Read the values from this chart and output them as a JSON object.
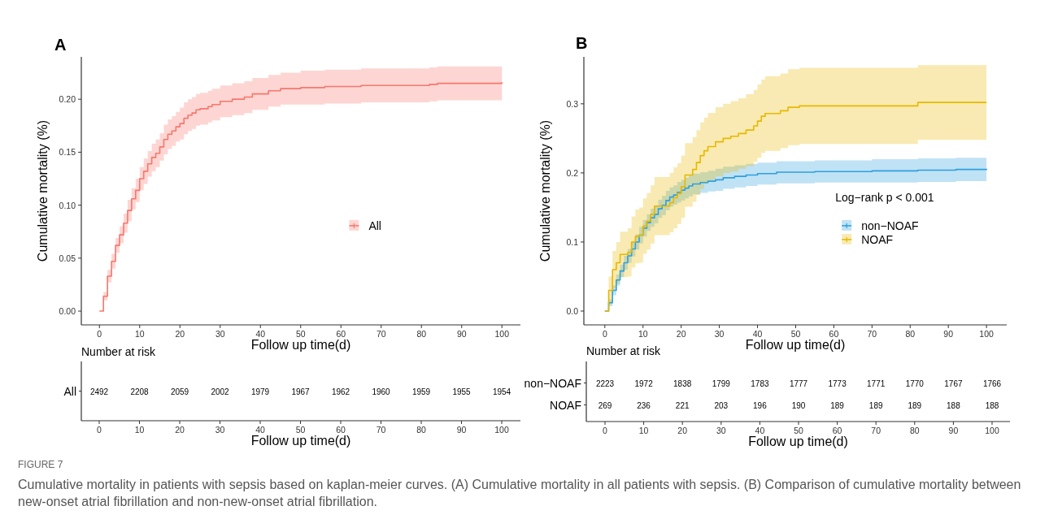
{
  "chart_data": [
    {
      "type": "step",
      "title": "A",
      "xlabel": "Follow up time(d)",
      "ylabel": "Cumulative mortality (%)",
      "xlim": [
        -4.5,
        104.6
      ],
      "xticks": [
        0,
        10,
        20,
        30,
        40,
        50,
        60,
        70,
        80,
        90,
        100
      ],
      "ylim": [
        -0.013,
        0.24
      ],
      "yticks": [
        {
          "value": 0,
          "label": "0.00"
        },
        {
          "value": 0.05,
          "label": "0.05"
        },
        {
          "value": 0.1,
          "label": "0.10"
        },
        {
          "value": 0.15,
          "label": "0.15"
        },
        {
          "value": 0.2,
          "label": "0.20"
        }
      ],
      "legend": "right",
      "series": [
        {
          "name": "All",
          "color": "#f8766d",
          "x": [
            0,
            1,
            2,
            3,
            4,
            5,
            6,
            7,
            8,
            9,
            10,
            11,
            12,
            13,
            14,
            15,
            16,
            17,
            18,
            19,
            20,
            21,
            22,
            23,
            24,
            25,
            27,
            28,
            30,
            33,
            36,
            38,
            42,
            45,
            50,
            56,
            65,
            82,
            84,
            100
          ],
          "values": [
            0,
            0.014,
            0.033,
            0.047,
            0.062,
            0.072,
            0.083,
            0.095,
            0.106,
            0.114,
            0.125,
            0.132,
            0.139,
            0.145,
            0.149,
            0.155,
            0.162,
            0.167,
            0.17,
            0.174,
            0.177,
            0.182,
            0.185,
            0.187,
            0.19,
            0.191,
            0.193,
            0.195,
            0.198,
            0.2,
            0.202,
            0.205,
            0.208,
            0.21,
            0.211,
            0.212,
            0.213,
            0.214,
            0.215,
            0.216
          ],
          "lower": [
            0,
            0.01,
            0.027,
            0.04,
            0.055,
            0.064,
            0.074,
            0.085,
            0.096,
            0.103,
            0.114,
            0.12,
            0.127,
            0.132,
            0.136,
            0.142,
            0.148,
            0.153,
            0.156,
            0.16,
            0.162,
            0.167,
            0.17,
            0.172,
            0.175,
            0.176,
            0.178,
            0.18,
            0.183,
            0.185,
            0.187,
            0.19,
            0.193,
            0.195,
            0.195,
            0.196,
            0.197,
            0.198,
            0.199,
            0.2
          ],
          "upper": [
            0,
            0.018,
            0.039,
            0.054,
            0.069,
            0.08,
            0.092,
            0.105,
            0.116,
            0.125,
            0.136,
            0.144,
            0.151,
            0.158,
            0.162,
            0.168,
            0.176,
            0.181,
            0.184,
            0.188,
            0.192,
            0.197,
            0.2,
            0.202,
            0.205,
            0.206,
            0.208,
            0.21,
            0.213,
            0.215,
            0.217,
            0.22,
            0.223,
            0.225,
            0.227,
            0.228,
            0.229,
            0.23,
            0.231,
            0.232
          ]
        }
      ]
    },
    {
      "type": "heatmap",
      "title": "Number at risk",
      "xlabel": "Follow up time(d)",
      "categories": [
        "0",
        "10",
        "20",
        "30",
        "40",
        "50",
        "60",
        "70",
        "80",
        "90",
        "100"
      ],
      "y_categories": [
        "All"
      ],
      "data_labels": true,
      "cells": [
        [
          2492,
          2208,
          2059,
          2002,
          1979,
          1967,
          1962,
          1960,
          1959,
          1955,
          1954
        ]
      ]
    },
    {
      "type": "step",
      "title": "B",
      "xlabel": "Follow up time(d)",
      "ylabel": "Cumulative mortality (%)",
      "xlim": [
        -5.5,
        105.3
      ],
      "xticks": [
        0,
        10,
        20,
        30,
        40,
        50,
        60,
        70,
        80,
        90,
        100
      ],
      "ylim": [
        -0.02,
        0.368
      ],
      "yticks": [
        {
          "value": 0,
          "label": "0.0"
        },
        {
          "value": 0.1,
          "label": "0.1"
        },
        {
          "value": 0.2,
          "label": "0.2"
        },
        {
          "value": 0.3,
          "label": "0.3"
        }
      ],
      "legend": "right",
      "annotations": [
        "Log−rank  p < 0.001"
      ],
      "series": [
        {
          "name": "non−NOAF",
          "color": "#2e9fdf",
          "x": [
            0,
            1,
            2,
            3,
            4,
            5,
            6,
            7,
            8,
            9,
            10,
            11,
            12,
            13,
            14,
            15,
            16,
            17,
            18,
            19,
            20,
            21,
            22,
            23,
            25,
            27,
            29,
            31,
            34,
            37,
            40,
            45,
            55,
            70,
            82,
            92,
            100
          ],
          "values": [
            0,
            0.012,
            0.03,
            0.045,
            0.058,
            0.07,
            0.08,
            0.09,
            0.1,
            0.11,
            0.12,
            0.128,
            0.135,
            0.14,
            0.148,
            0.153,
            0.16,
            0.165,
            0.168,
            0.172,
            0.175,
            0.178,
            0.181,
            0.184,
            0.186,
            0.188,
            0.19,
            0.193,
            0.195,
            0.197,
            0.199,
            0.201,
            0.202,
            0.203,
            0.204,
            0.205,
            0.206
          ],
          "lower": [
            0,
            0.007,
            0.023,
            0.037,
            0.049,
            0.06,
            0.07,
            0.079,
            0.089,
            0.098,
            0.108,
            0.116,
            0.122,
            0.127,
            0.135,
            0.139,
            0.146,
            0.151,
            0.154,
            0.157,
            0.16,
            0.163,
            0.166,
            0.169,
            0.171,
            0.173,
            0.174,
            0.177,
            0.179,
            0.181,
            0.183,
            0.185,
            0.186,
            0.186,
            0.187,
            0.188,
            0.189
          ],
          "upper": [
            0,
            0.017,
            0.037,
            0.053,
            0.067,
            0.08,
            0.09,
            0.101,
            0.111,
            0.122,
            0.132,
            0.14,
            0.148,
            0.153,
            0.161,
            0.167,
            0.174,
            0.179,
            0.182,
            0.187,
            0.19,
            0.193,
            0.196,
            0.199,
            0.201,
            0.203,
            0.206,
            0.209,
            0.211,
            0.213,
            0.215,
            0.217,
            0.218,
            0.22,
            0.221,
            0.222,
            0.223
          ]
        },
        {
          "name": "NOAF",
          "color": "#e7b800",
          "x": [
            0,
            1,
            2,
            3,
            4,
            6,
            7,
            8,
            9,
            10,
            11,
            12,
            13,
            17,
            18,
            19,
            20,
            21,
            23,
            24,
            25,
            26,
            27,
            29,
            31,
            33,
            35,
            37,
            39,
            40,
            41,
            42,
            46,
            48,
            51,
            82,
            100
          ],
          "values": [
            0,
            0.03,
            0.06,
            0.07,
            0.082,
            0.085,
            0.1,
            0.108,
            0.11,
            0.123,
            0.13,
            0.14,
            0.152,
            0.157,
            0.164,
            0.17,
            0.18,
            0.197,
            0.205,
            0.215,
            0.225,
            0.232,
            0.238,
            0.245,
            0.25,
            0.253,
            0.257,
            0.262,
            0.268,
            0.275,
            0.282,
            0.286,
            0.29,
            0.295,
            0.297,
            0.302,
            0.302
          ],
          "lower": [
            0,
            0.01,
            0.033,
            0.04,
            0.049,
            0.05,
            0.063,
            0.069,
            0.07,
            0.083,
            0.089,
            0.098,
            0.11,
            0.114,
            0.12,
            0.126,
            0.135,
            0.151,
            0.158,
            0.168,
            0.177,
            0.184,
            0.189,
            0.195,
            0.2,
            0.202,
            0.206,
            0.21,
            0.216,
            0.222,
            0.229,
            0.232,
            0.236,
            0.24,
            0.242,
            0.248,
            0.248
          ],
          "upper": [
            0,
            0.05,
            0.087,
            0.1,
            0.115,
            0.12,
            0.137,
            0.147,
            0.15,
            0.163,
            0.171,
            0.182,
            0.194,
            0.2,
            0.208,
            0.214,
            0.225,
            0.243,
            0.252,
            0.262,
            0.273,
            0.28,
            0.287,
            0.295,
            0.3,
            0.304,
            0.308,
            0.314,
            0.32,
            0.328,
            0.335,
            0.34,
            0.344,
            0.35,
            0.352,
            0.356,
            0.356
          ]
        }
      ]
    },
    {
      "type": "heatmap",
      "title": "Number at risk",
      "xlabel": "Follow up time(d)",
      "categories": [
        "0",
        "10",
        "20",
        "30",
        "40",
        "50",
        "60",
        "70",
        "80",
        "90",
        "100"
      ],
      "y_categories": [
        "non−NOAF",
        "NOAF"
      ],
      "data_labels": true,
      "cells": [
        [
          2223,
          1972,
          1838,
          1799,
          1783,
          1777,
          1773,
          1771,
          1770,
          1767,
          1766
        ],
        [
          269,
          236,
          221,
          203,
          196,
          190,
          189,
          189,
          189,
          188,
          188
        ]
      ]
    },
    {
      "type": "other",
      "title": "FIGURE 7",
      "annotations": [
        "Cumulative mortality in patients with sepsis based on kaplan-meier curves. (A) Cumulative mortality in all patients with sepsis. (B) Comparison of cumulative mortality between new-onset atrial fibrillation and non-new-onset atrial fibrillation."
      ]
    }
  ]
}
